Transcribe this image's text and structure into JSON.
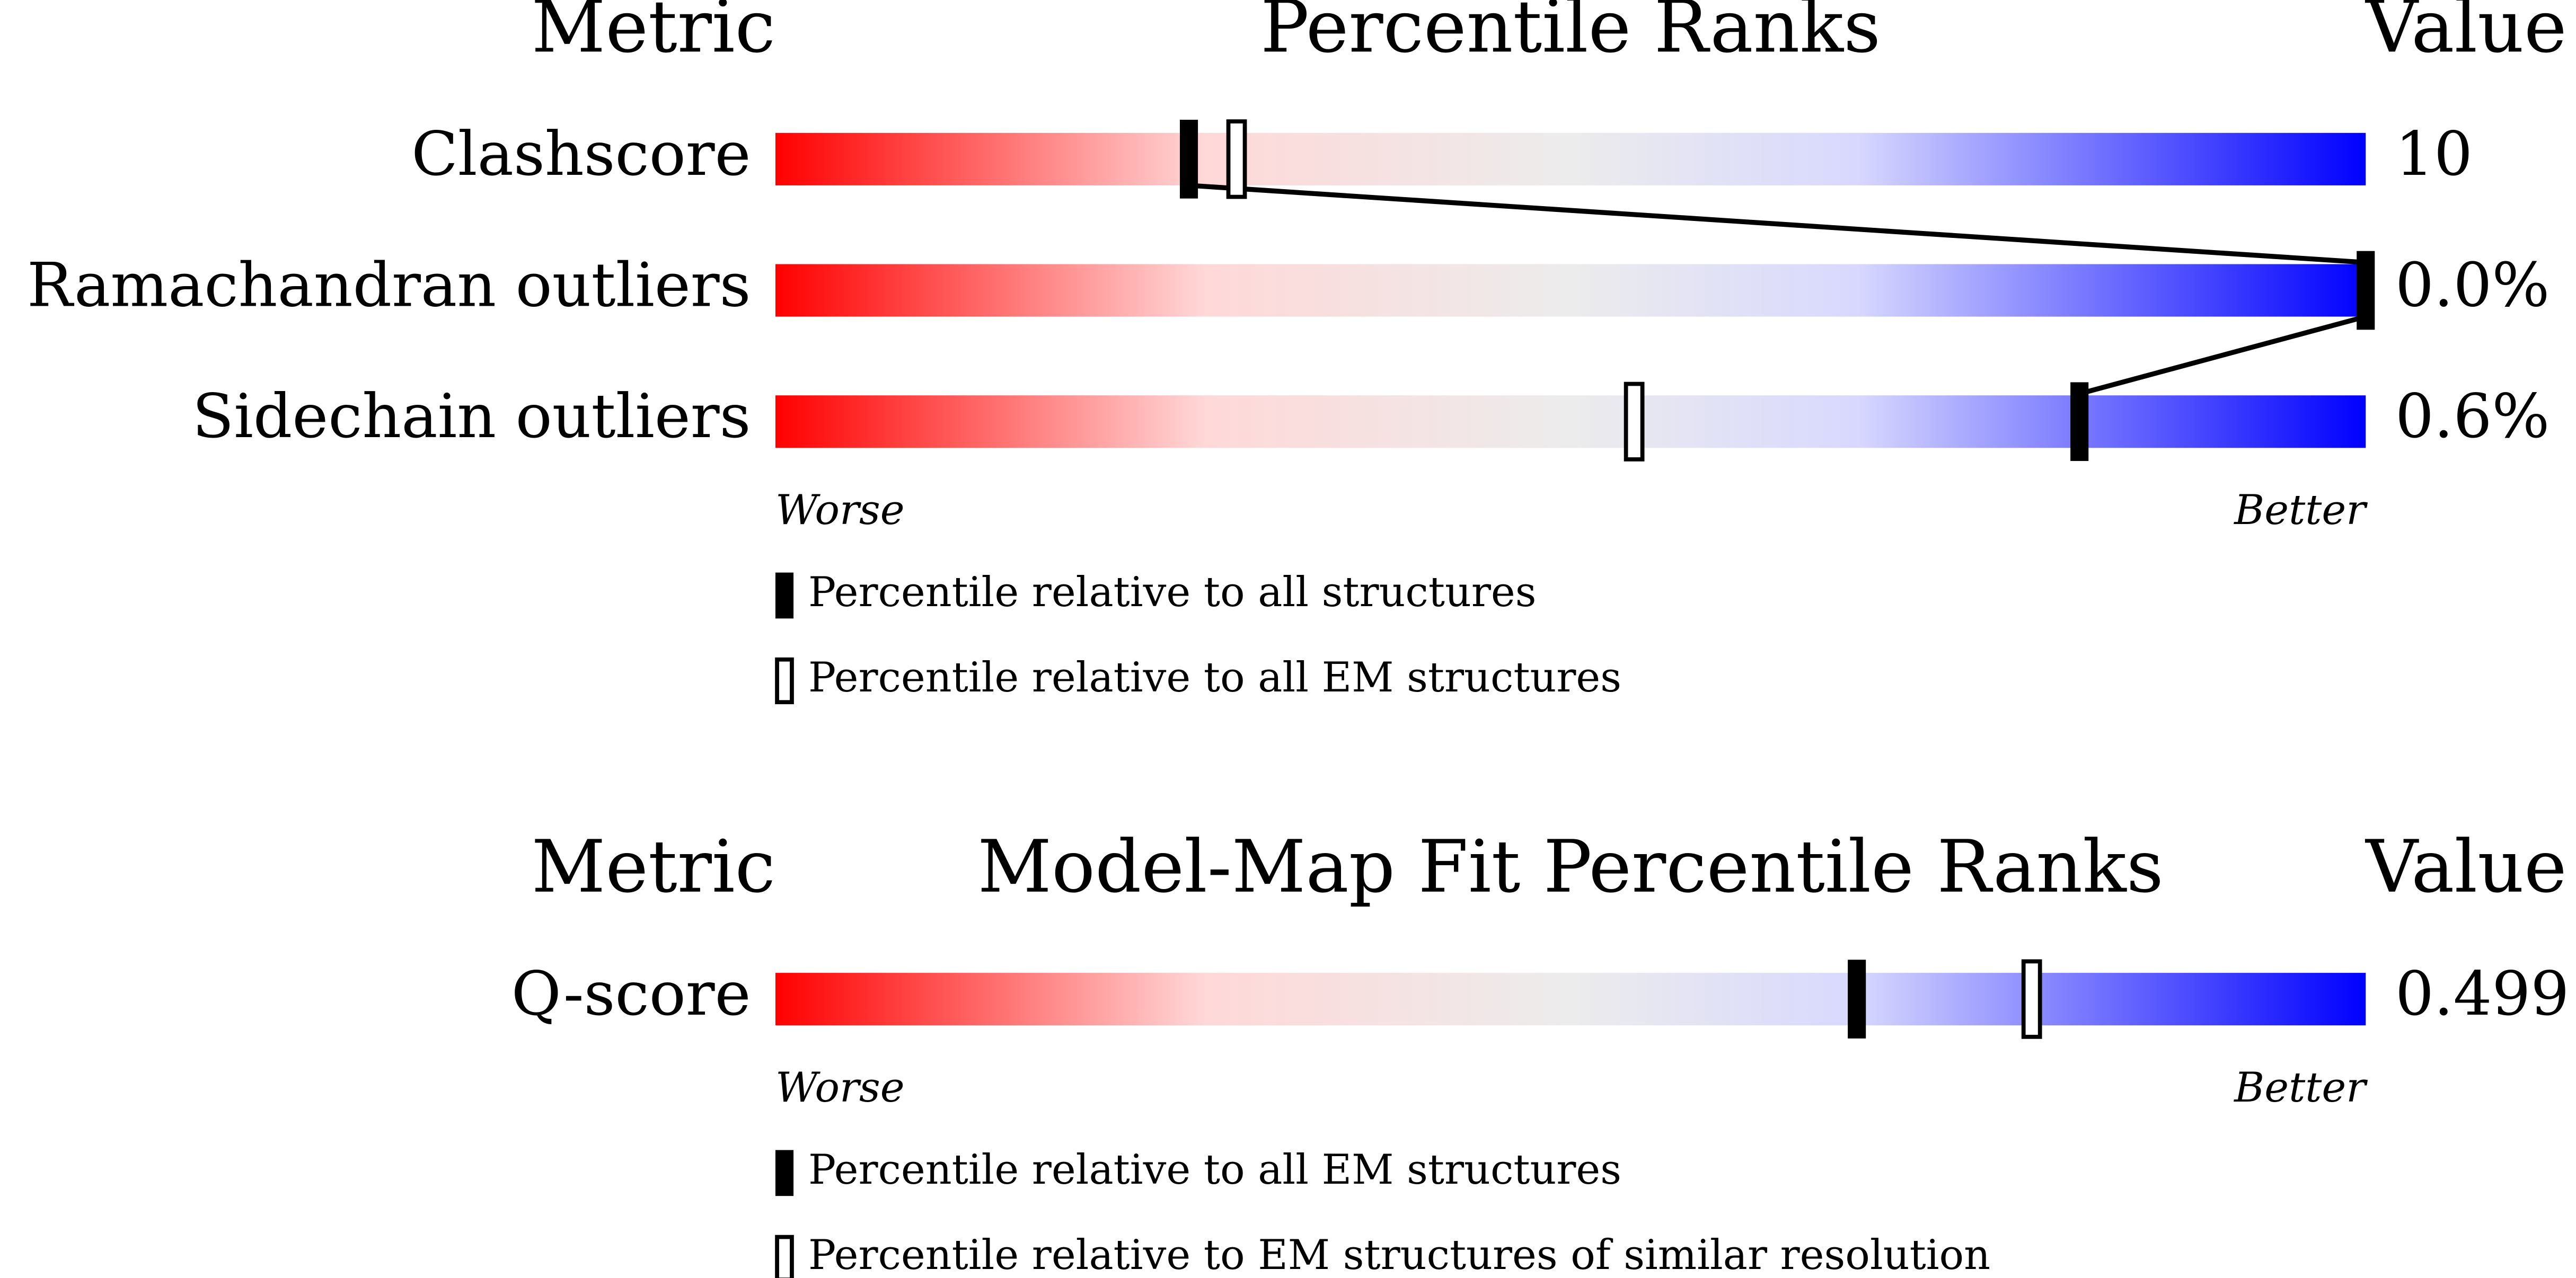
{
  "chart_data": [
    {
      "type": "percentile-slider",
      "header_left": "Metric",
      "title": "Percentile Ranks",
      "header_right": "Value",
      "categories": [
        "Clashscore",
        "Ramachandran outliers",
        "Sidechain outliers"
      ],
      "value_texts": [
        "10",
        "0.0%",
        "0.6%"
      ],
      "xlim": [
        0,
        100
      ],
      "axis_labels": {
        "worse": "Worse",
        "better": "Better"
      },
      "series": [
        {
          "name": "Percentile relative to all structures",
          "style": "filled",
          "values": [
            26,
            100,
            82
          ]
        },
        {
          "name": "Percentile relative to all EM structures",
          "style": "outline",
          "values": [
            29,
            null,
            54
          ]
        }
      ]
    },
    {
      "type": "percentile-slider",
      "header_left": "Metric",
      "title": "Model-Map Fit Percentile Ranks",
      "header_right": "Value",
      "categories": [
        "Q-score"
      ],
      "value_texts": [
        "0.499"
      ],
      "xlim": [
        0,
        100
      ],
      "axis_labels": {
        "worse": "Worse",
        "better": "Better"
      },
      "series": [
        {
          "name": "Percentile relative to all EM structures",
          "style": "filled",
          "values": [
            68
          ]
        },
        {
          "name": "Percentile relative to EM structures of similar resolution",
          "style": "outline",
          "values": [
            79
          ]
        }
      ]
    }
  ]
}
